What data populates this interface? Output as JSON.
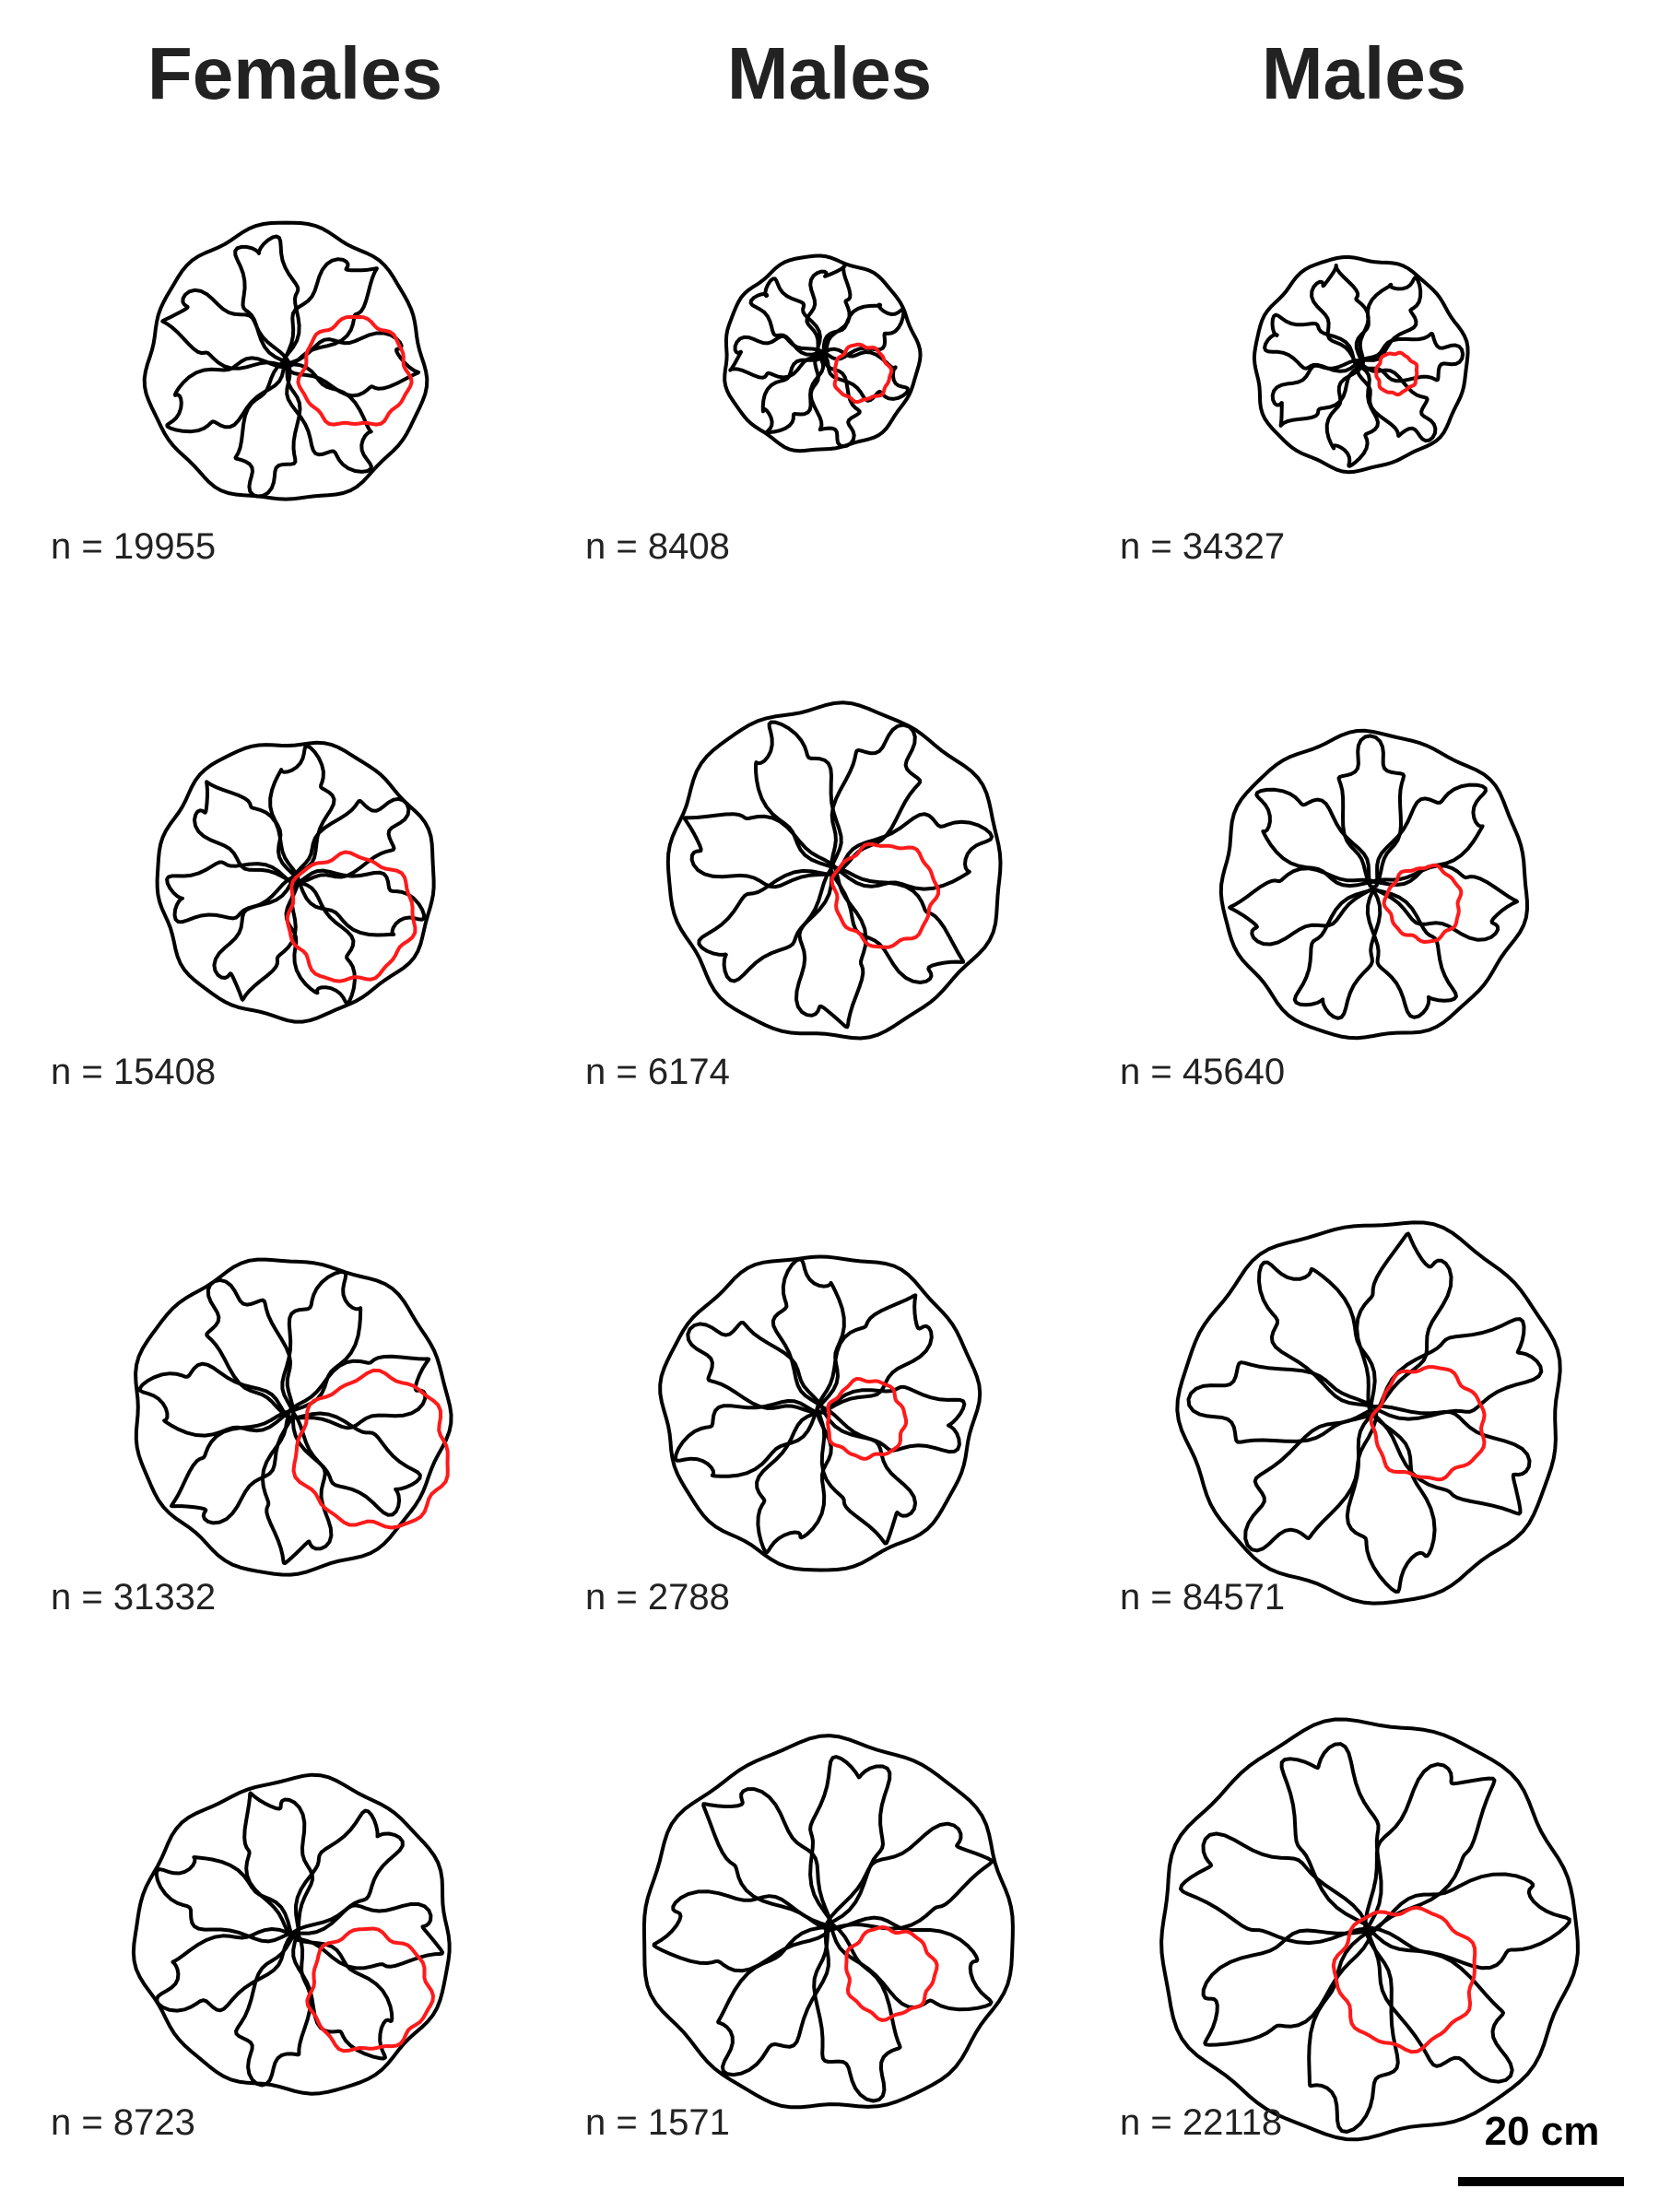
{
  "colors": {
    "trajectory": "#000000",
    "region": "#ff1a1a",
    "text": "#222222"
  },
  "columns": [
    {
      "title": "Females"
    },
    {
      "title": "Males"
    },
    {
      "title": "Males"
    }
  ],
  "panels": [
    {
      "column": 0,
      "row": 0,
      "n_label": "n = 19955"
    },
    {
      "column": 1,
      "row": 0,
      "n_label": "n = 8408"
    },
    {
      "column": 2,
      "row": 0,
      "n_label": "n = 34327"
    },
    {
      "column": 0,
      "row": 1,
      "n_label": "n = 15408"
    },
    {
      "column": 1,
      "row": 1,
      "n_label": "n = 6174"
    },
    {
      "column": 2,
      "row": 1,
      "n_label": "n = 45640"
    },
    {
      "column": 0,
      "row": 2,
      "n_label": "n = 31332"
    },
    {
      "column": 1,
      "row": 2,
      "n_label": "n = 2788"
    },
    {
      "column": 2,
      "row": 2,
      "n_label": "n = 84571"
    },
    {
      "column": 0,
      "row": 3,
      "n_label": "n = 8723"
    },
    {
      "column": 1,
      "row": 3,
      "n_label": "n = 1571"
    },
    {
      "column": 2,
      "row": 3,
      "n_label": "n = 22118"
    }
  ],
  "scale_bar": {
    "label": "20 cm"
  }
}
